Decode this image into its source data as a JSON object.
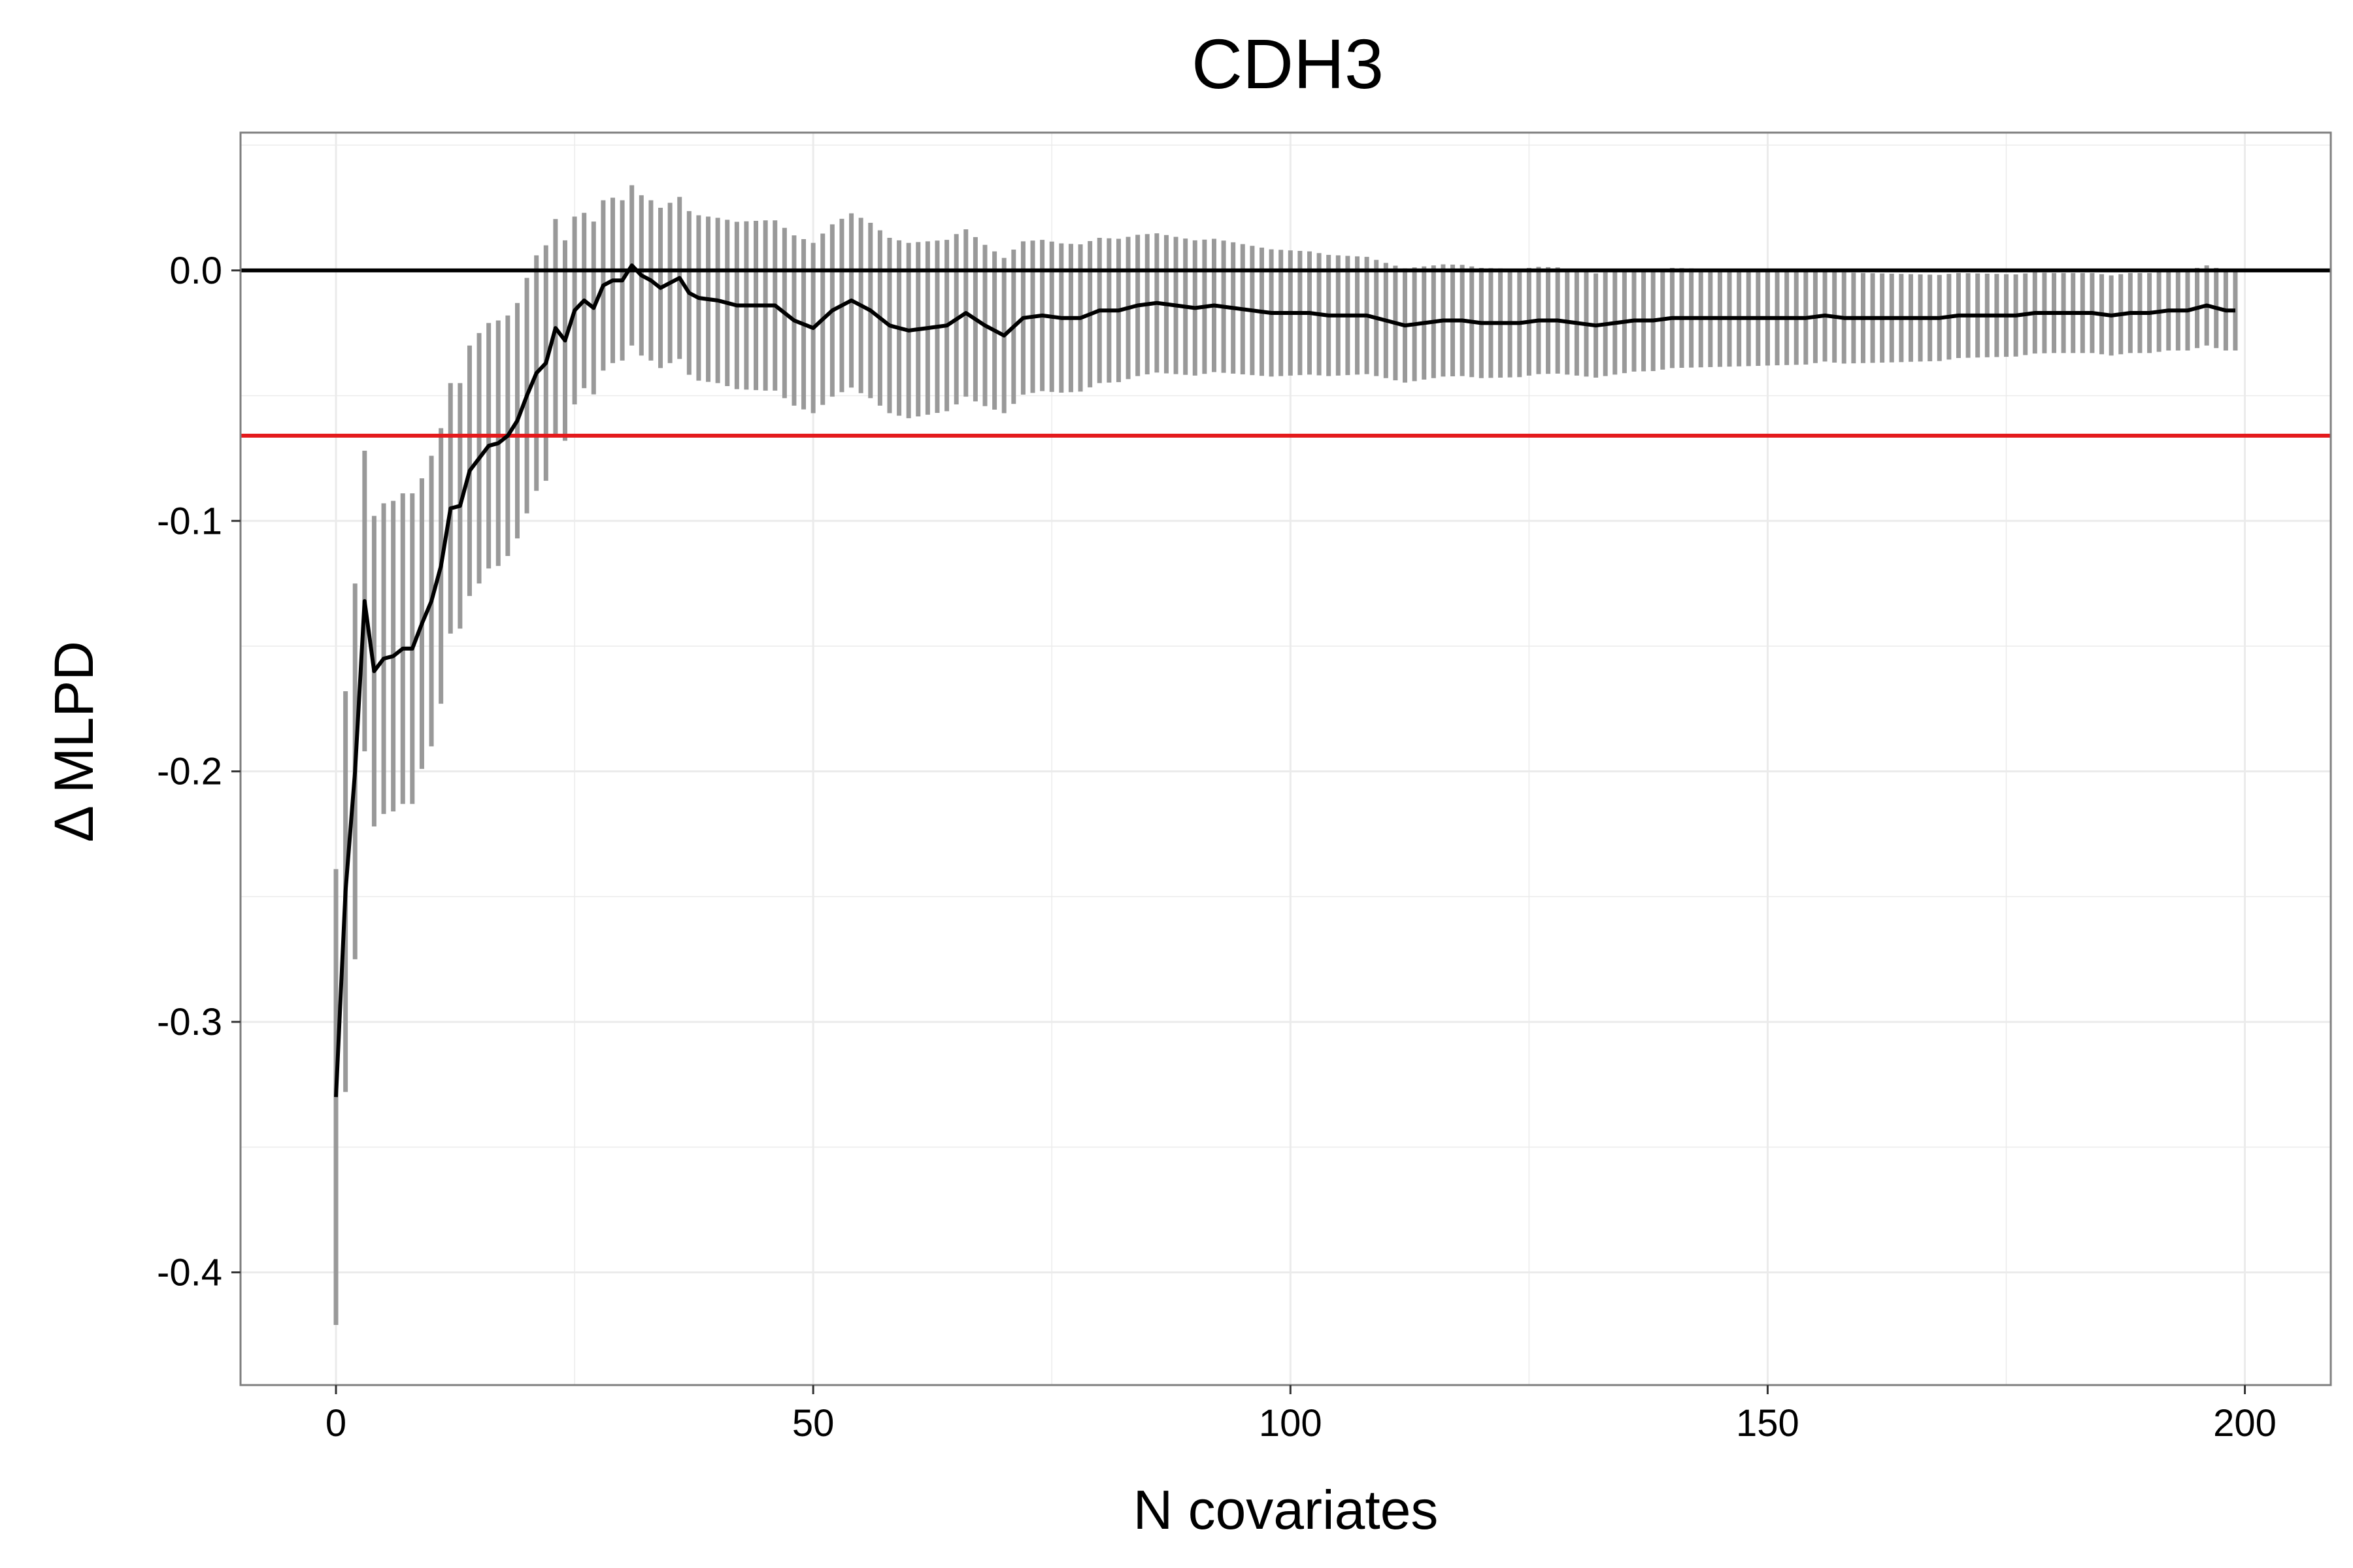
{
  "chart_data": {
    "type": "line",
    "title": "CDH3",
    "xlabel": "N covariates",
    "ylabel": "Δ MLPD",
    "xlim": [
      -10,
      209
    ],
    "ylim": [
      -0.445,
      0.055
    ],
    "xticks": [
      0,
      50,
      100,
      150,
      200
    ],
    "xtick_labels": [
      "0",
      "50",
      "100",
      "150",
      "200"
    ],
    "yticks": [
      0.0,
      -0.1,
      -0.2,
      -0.3,
      -0.4
    ],
    "ytick_labels": [
      "0.0",
      "-0.1",
      "-0.2",
      "-0.3",
      "-0.4"
    ],
    "grid": true,
    "reference_lines": [
      {
        "y": 0.0,
        "color": "#000000"
      },
      {
        "y": -0.066,
        "color": "#e41a1c"
      }
    ],
    "colors": {
      "line": "#000000",
      "errorbar": "#999999",
      "panel_border": "#7f7f7f",
      "grid": "#ebebeb"
    },
    "mean_keypoints": [
      [
        0,
        -0.33
      ],
      [
        1,
        -0.248
      ],
      [
        2,
        -0.2
      ],
      [
        3,
        -0.132
      ],
      [
        4,
        -0.16
      ],
      [
        5,
        -0.155
      ],
      [
        6,
        -0.154
      ],
      [
        7,
        -0.151
      ],
      [
        8,
        -0.151
      ],
      [
        9,
        -0.141
      ],
      [
        10,
        -0.132
      ],
      [
        11,
        -0.118
      ],
      [
        12,
        -0.095
      ],
      [
        13,
        -0.094
      ],
      [
        14,
        -0.08
      ],
      [
        15,
        -0.075
      ],
      [
        16,
        -0.07
      ],
      [
        17,
        -0.069
      ],
      [
        18,
        -0.066
      ],
      [
        19,
        -0.06
      ],
      [
        20,
        -0.05
      ],
      [
        21,
        -0.041
      ],
      [
        22,
        -0.037
      ],
      [
        23,
        -0.023
      ],
      [
        24,
        -0.028
      ],
      [
        25,
        -0.016
      ],
      [
        26,
        -0.012
      ],
      [
        27,
        -0.015
      ],
      [
        28,
        -0.006
      ],
      [
        29,
        -0.004
      ],
      [
        30,
        -0.004
      ],
      [
        31,
        0.002
      ],
      [
        32,
        -0.002
      ],
      [
        33,
        -0.004
      ],
      [
        34,
        -0.007
      ],
      [
        35,
        -0.005
      ],
      [
        36,
        -0.003
      ],
      [
        37,
        -0.009
      ],
      [
        38,
        -0.011
      ],
      [
        40,
        -0.012
      ],
      [
        42,
        -0.014
      ],
      [
        44,
        -0.014
      ],
      [
        46,
        -0.014
      ],
      [
        48,
        -0.02
      ],
      [
        50,
        -0.023
      ],
      [
        52,
        -0.016
      ],
      [
        54,
        -0.012
      ],
      [
        56,
        -0.016
      ],
      [
        58,
        -0.022
      ],
      [
        60,
        -0.024
      ],
      [
        62,
        -0.023
      ],
      [
        64,
        -0.022
      ],
      [
        66,
        -0.017
      ],
      [
        68,
        -0.022
      ],
      [
        70,
        -0.026
      ],
      [
        72,
        -0.019
      ],
      [
        74,
        -0.018
      ],
      [
        76,
        -0.019
      ],
      [
        78,
        -0.019
      ],
      [
        80,
        -0.016
      ],
      [
        82,
        -0.016
      ],
      [
        84,
        -0.014
      ],
      [
        86,
        -0.013
      ],
      [
        88,
        -0.014
      ],
      [
        90,
        -0.015
      ],
      [
        92,
        -0.014
      ],
      [
        94,
        -0.015
      ],
      [
        96,
        -0.016
      ],
      [
        98,
        -0.017
      ],
      [
        100,
        -0.017
      ],
      [
        102,
        -0.017
      ],
      [
        104,
        -0.018
      ],
      [
        106,
        -0.018
      ],
      [
        108,
        -0.018
      ],
      [
        110,
        -0.02
      ],
      [
        112,
        -0.022
      ],
      [
        114,
        -0.021
      ],
      [
        116,
        -0.02
      ],
      [
        118,
        -0.02
      ],
      [
        120,
        -0.021
      ],
      [
        122,
        -0.021
      ],
      [
        124,
        -0.021
      ],
      [
        126,
        -0.02
      ],
      [
        128,
        -0.02
      ],
      [
        130,
        -0.021
      ],
      [
        132,
        -0.022
      ],
      [
        134,
        -0.021
      ],
      [
        136,
        -0.02
      ],
      [
        138,
        -0.02
      ],
      [
        140,
        -0.019
      ],
      [
        142,
        -0.019
      ],
      [
        144,
        -0.019
      ],
      [
        146,
        -0.019
      ],
      [
        148,
        -0.019
      ],
      [
        150,
        -0.019
      ],
      [
        152,
        -0.019
      ],
      [
        154,
        -0.019
      ],
      [
        156,
        -0.018
      ],
      [
        158,
        -0.019
      ],
      [
        160,
        -0.019
      ],
      [
        162,
        -0.019
      ],
      [
        164,
        -0.019
      ],
      [
        166,
        -0.019
      ],
      [
        168,
        -0.019
      ],
      [
        170,
        -0.018
      ],
      [
        172,
        -0.018
      ],
      [
        174,
        -0.018
      ],
      [
        176,
        -0.018
      ],
      [
        178,
        -0.017
      ],
      [
        180,
        -0.017
      ],
      [
        182,
        -0.017
      ],
      [
        184,
        -0.017
      ],
      [
        186,
        -0.018
      ],
      [
        188,
        -0.017
      ],
      [
        190,
        -0.017
      ],
      [
        192,
        -0.016
      ],
      [
        194,
        -0.016
      ],
      [
        196,
        -0.014
      ],
      [
        198,
        -0.016
      ],
      [
        199,
        -0.016
      ]
    ],
    "halfwidth_keypoints": [
      [
        0,
        0.091
      ],
      [
        1,
        0.08
      ],
      [
        2,
        0.075
      ],
      [
        3,
        0.06
      ],
      [
        4,
        0.062
      ],
      [
        5,
        0.062
      ],
      [
        6,
        0.062
      ],
      [
        7,
        0.062
      ],
      [
        8,
        0.062
      ],
      [
        9,
        0.058
      ],
      [
        10,
        0.058
      ],
      [
        11,
        0.055
      ],
      [
        12,
        0.05
      ],
      [
        13,
        0.049
      ],
      [
        14,
        0.05
      ],
      [
        15,
        0.05
      ],
      [
        16,
        0.049
      ],
      [
        17,
        0.049
      ],
      [
        18,
        0.048
      ],
      [
        19,
        0.047
      ],
      [
        20,
        0.047
      ],
      [
        21,
        0.047
      ],
      [
        22,
        0.047
      ],
      [
        24,
        0.04
      ],
      [
        26,
        0.035
      ],
      [
        28,
        0.034
      ],
      [
        30,
        0.032
      ],
      [
        32,
        0.032
      ],
      [
        35,
        0.032
      ],
      [
        38,
        0.033
      ],
      [
        40,
        0.033
      ],
      [
        45,
        0.034
      ],
      [
        50,
        0.034
      ],
      [
        55,
        0.035
      ],
      [
        60,
        0.035
      ],
      [
        65,
        0.034
      ],
      [
        70,
        0.031
      ],
      [
        80,
        0.029
      ],
      [
        90,
        0.027
      ],
      [
        100,
        0.025
      ],
      [
        110,
        0.023
      ],
      [
        120,
        0.022
      ],
      [
        140,
        0.02
      ],
      [
        160,
        0.018
      ],
      [
        180,
        0.016
      ],
      [
        199,
        0.016
      ]
    ]
  }
}
